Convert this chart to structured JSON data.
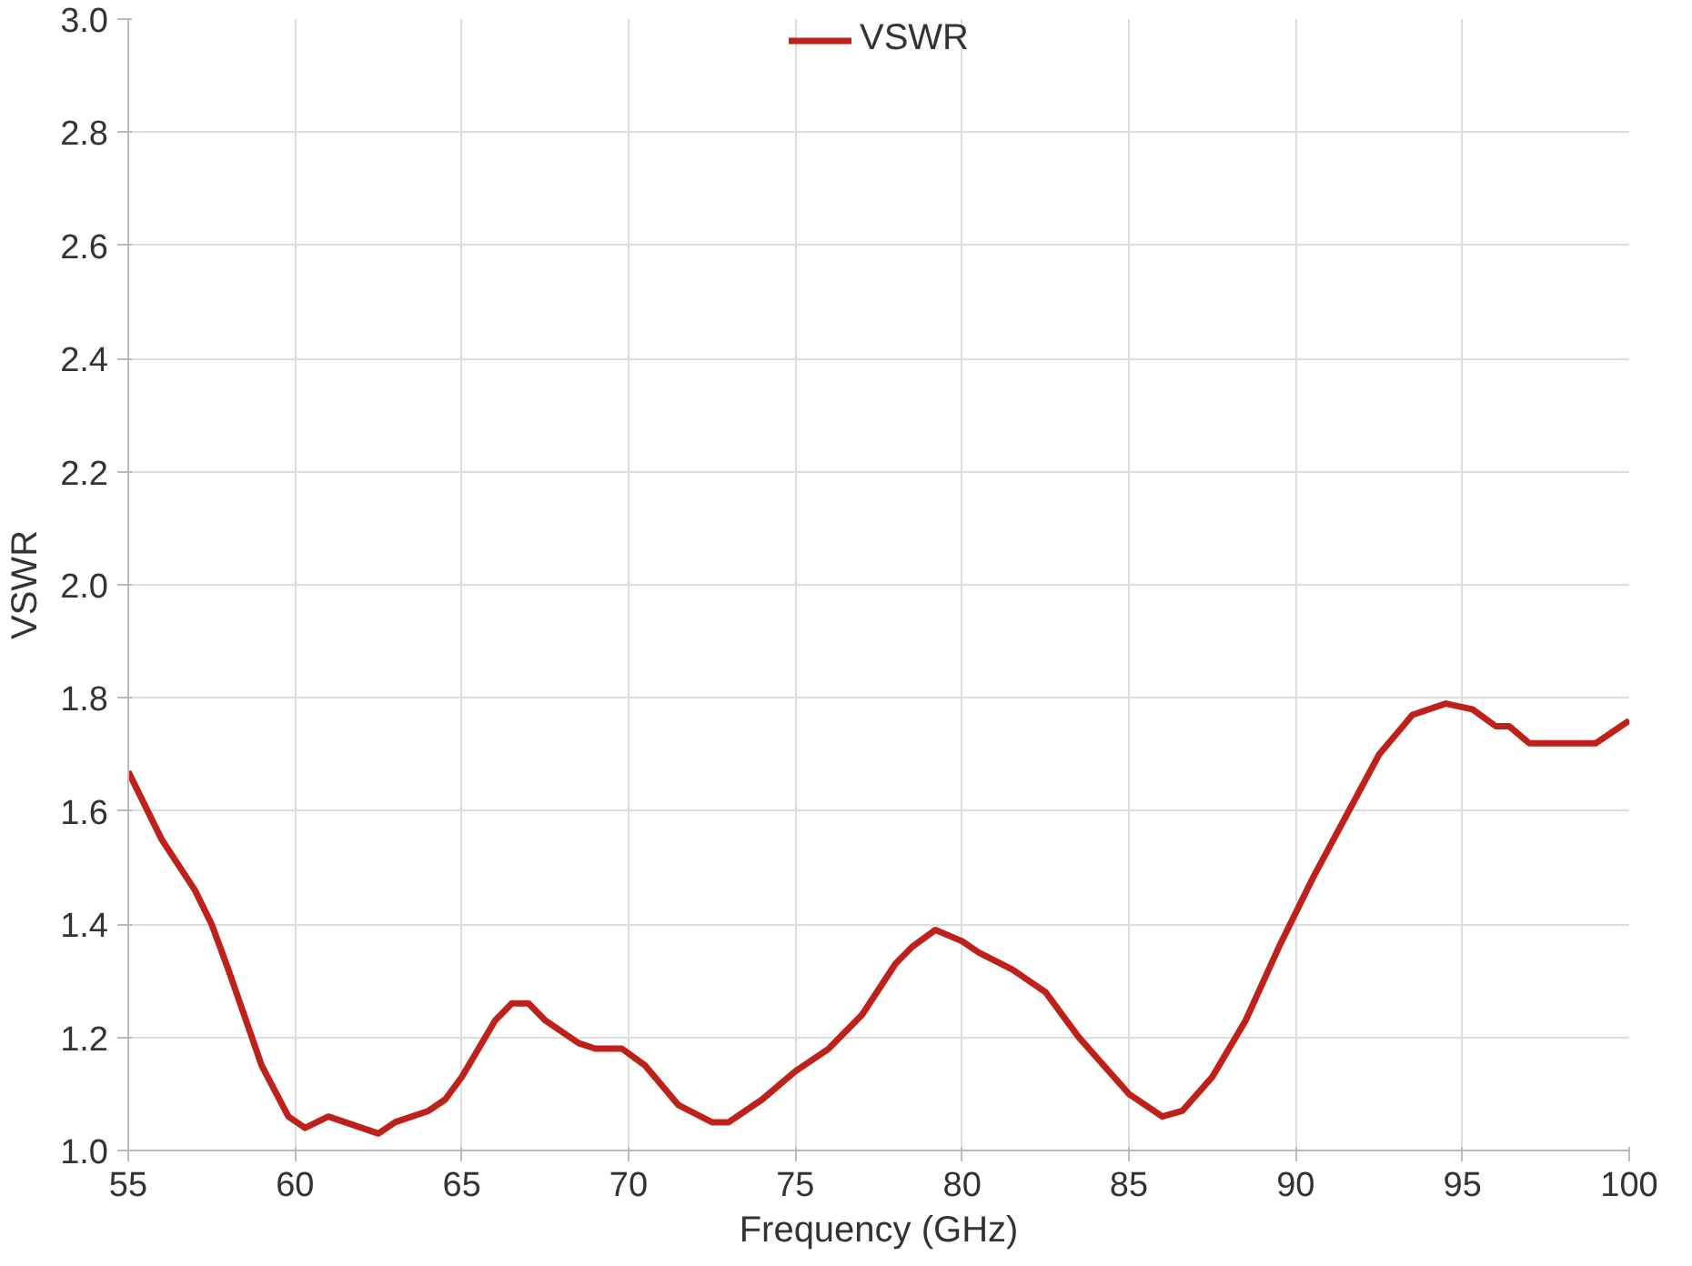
{
  "chart_data": {
    "type": "line",
    "xlabel": "Frequency (GHz)",
    "ylabel": "VSWR",
    "x": [
      55,
      56,
      57,
      57.5,
      58,
      59,
      59.8,
      60.3,
      61,
      61.5,
      62.5,
      63,
      64,
      64.5,
      65,
      66,
      66.5,
      67,
      67.5,
      68.5,
      69,
      69.8,
      70.5,
      71.5,
      72.5,
      73,
      74,
      75,
      76,
      77,
      78,
      78.5,
      79.2,
      80,
      80.5,
      81.5,
      82.5,
      83.5,
      85,
      86,
      86.6,
      87.5,
      88.5,
      89.5,
      90.5,
      91.5,
      92.5,
      93.5,
      94.5,
      95.3,
      96,
      96.4,
      97,
      98,
      99,
      100
    ],
    "series": [
      {
        "name": "VSWR",
        "color": "#c0201a",
        "values": [
          1.67,
          1.55,
          1.46,
          1.4,
          1.32,
          1.15,
          1.06,
          1.04,
          1.06,
          1.05,
          1.03,
          1.05,
          1.07,
          1.09,
          1.13,
          1.23,
          1.26,
          1.26,
          1.23,
          1.19,
          1.18,
          1.18,
          1.15,
          1.08,
          1.05,
          1.05,
          1.09,
          1.14,
          1.18,
          1.24,
          1.33,
          1.36,
          1.39,
          1.37,
          1.35,
          1.32,
          1.28,
          1.2,
          1.1,
          1.06,
          1.07,
          1.13,
          1.23,
          1.36,
          1.48,
          1.59,
          1.7,
          1.77,
          1.79,
          1.78,
          1.75,
          1.75,
          1.72,
          1.72,
          1.72,
          1.76
        ]
      }
    ],
    "xlim": [
      55,
      100
    ],
    "xticks": [
      55,
      60,
      65,
      70,
      75,
      80,
      85,
      90,
      95,
      100
    ],
    "ylim": [
      1.0,
      3.0
    ],
    "yticks": [
      {
        "value": 1.0,
        "label": "1.0"
      },
      {
        "value": 1.2,
        "label": "1.2"
      },
      {
        "value": 1.4,
        "label": "1.4"
      },
      {
        "value": 1.6,
        "label": "1.6"
      },
      {
        "value": 1.8,
        "label": "1.8"
      },
      {
        "value": 2.0,
        "label": "2.0"
      },
      {
        "value": 2.2,
        "label": "2.2"
      },
      {
        "value": 2.4,
        "label": "2.4"
      },
      {
        "value": 2.6,
        "label": "2.6"
      },
      {
        "value": 2.8,
        "label": "2.8"
      },
      {
        "value": 3.0,
        "label": "3.0"
      }
    ],
    "grid": true,
    "legend": "top",
    "marker": "none",
    "line_style": "solid"
  }
}
